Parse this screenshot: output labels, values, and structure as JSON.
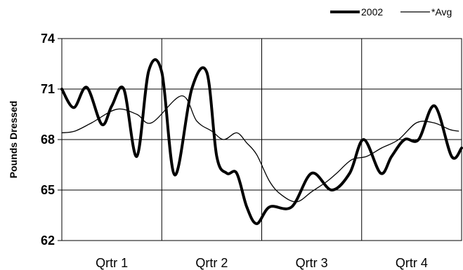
{
  "chart_data": {
    "type": "line",
    "title": "",
    "xlabel": "",
    "ylabel": "Pounds Dressed",
    "ylim": [
      62,
      74
    ],
    "yticks": [
      62,
      65,
      68,
      71,
      74
    ],
    "categories": [
      "Qrtr 1",
      "Qrtr 2",
      "Qrtr 3",
      "Qrtr 4"
    ],
    "grid": true,
    "legend_position": "top-right",
    "series": [
      {
        "name": "2002",
        "style": "thick",
        "color": "#000000",
        "x": [
          0,
          0.12,
          0.25,
          0.4,
          0.5,
          0.62,
          0.75,
          0.87,
          1.0,
          1.13,
          1.3,
          1.45,
          1.55,
          1.65,
          1.75,
          1.85,
          1.95,
          2.08,
          2.3,
          2.5,
          2.7,
          2.88,
          3.02,
          3.19,
          3.3,
          3.43,
          3.57,
          3.73,
          3.9,
          4.03
        ],
        "values": [
          71.0,
          69.9,
          71.1,
          68.9,
          70.0,
          71.0,
          67.0,
          72.1,
          72.0,
          65.9,
          71.0,
          72.0,
          67.0,
          66.0,
          66.0,
          64.0,
          63.0,
          64.0,
          64.0,
          66.0,
          65.0,
          66.0,
          68.0,
          66.0,
          67.0,
          68.0,
          68.0,
          70.0,
          67.0,
          67.5
        ],
        "last_x": 3.97
      },
      {
        "name": "*Avg",
        "style": "thin",
        "color": "#000000",
        "x": [
          0,
          0.13,
          0.3,
          0.55,
          0.75,
          0.9,
          1.2,
          1.35,
          1.5,
          1.62,
          1.75,
          1.85,
          1.95,
          2.08,
          2.2,
          2.35,
          2.5,
          2.65,
          2.75,
          2.9,
          3.05,
          3.2,
          3.37,
          3.55,
          3.72,
          3.88,
          3.97
        ],
        "values": [
          68.4,
          68.5,
          69.0,
          69.8,
          69.5,
          69.0,
          70.6,
          69.1,
          68.5,
          68.0,
          68.4,
          67.8,
          67.1,
          65.5,
          64.7,
          64.3,
          64.9,
          65.5,
          66.0,
          66.8,
          67.0,
          67.5,
          68.0,
          69.0,
          69.0,
          68.6,
          68.5
        ]
      }
    ]
  }
}
